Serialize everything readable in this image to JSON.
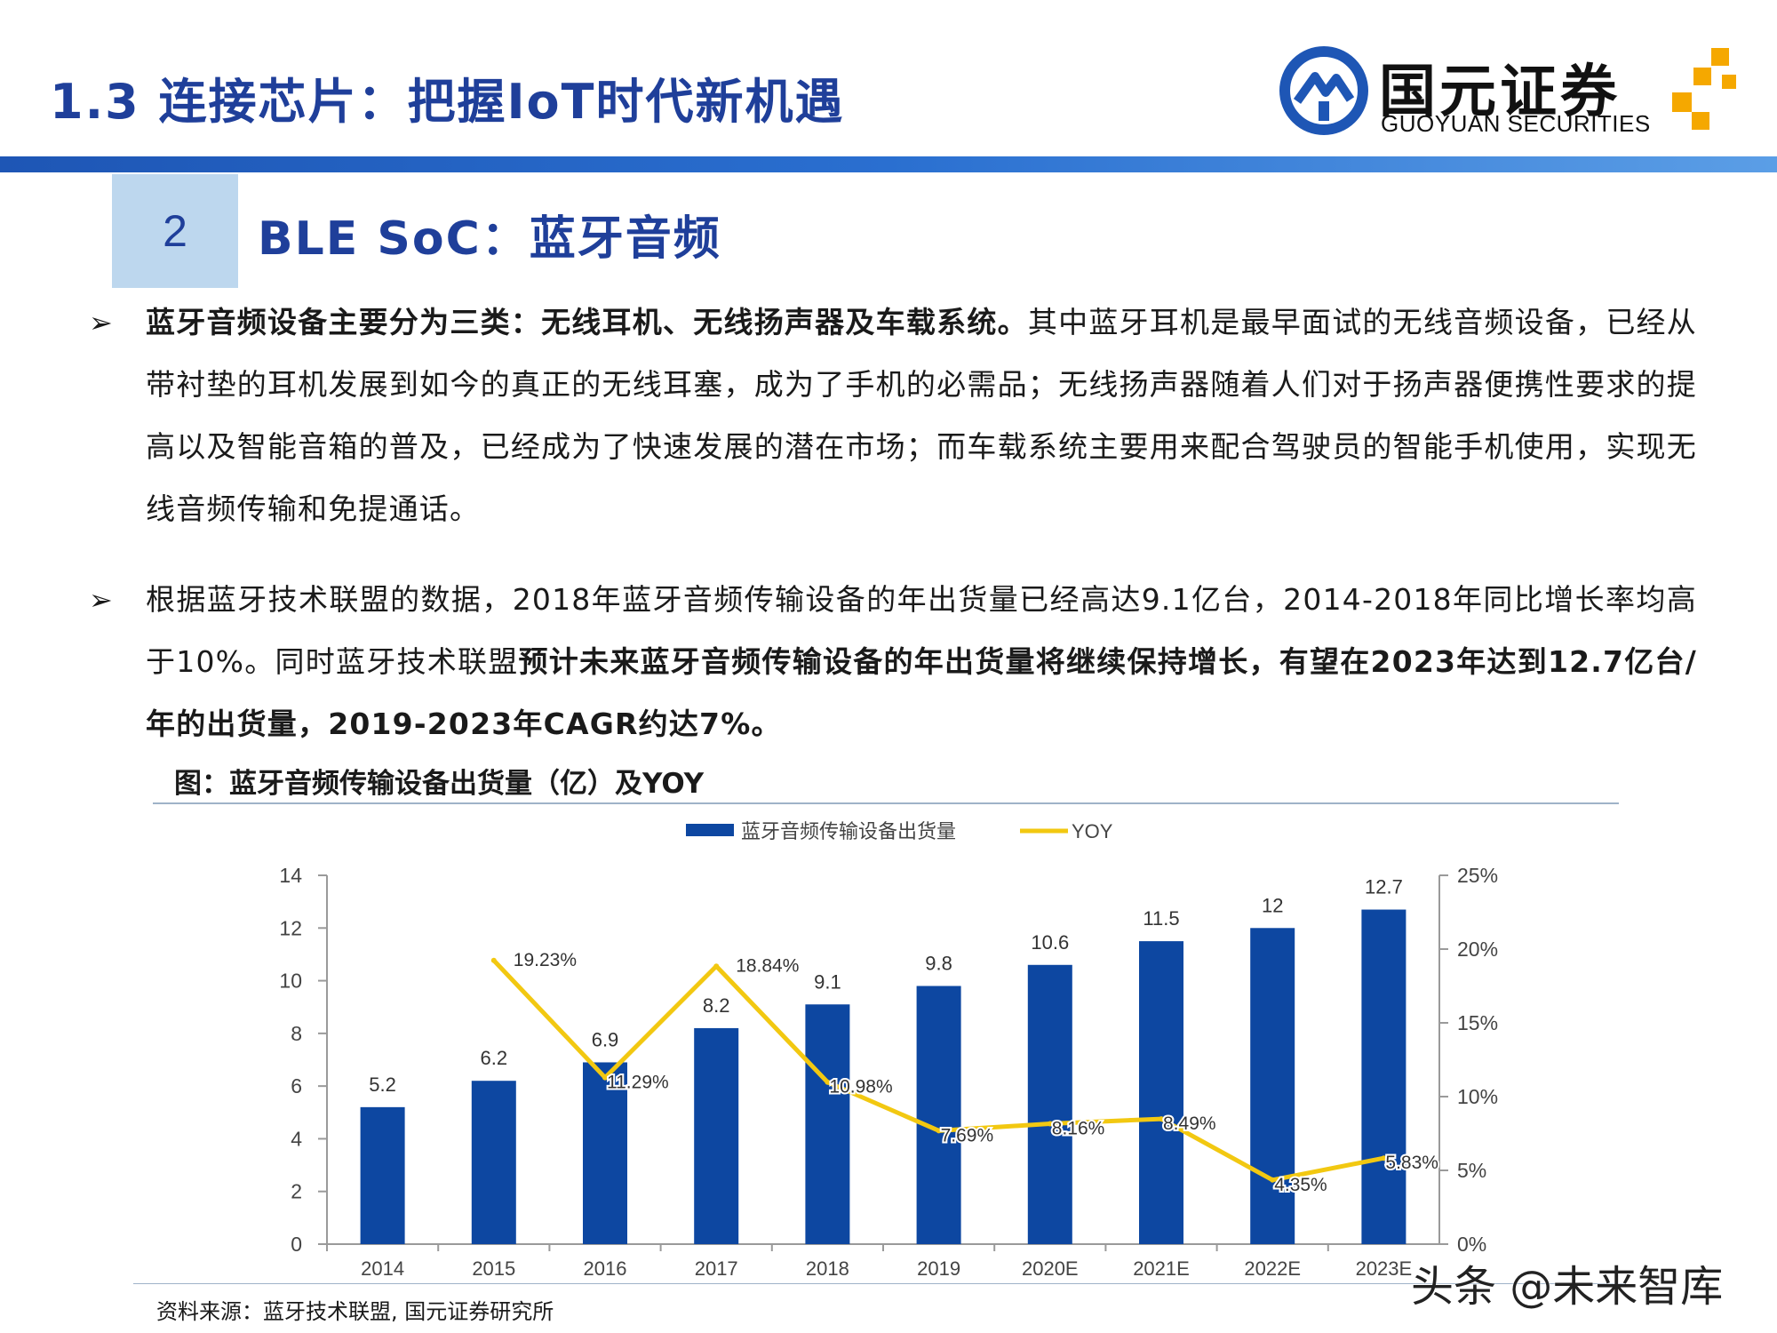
{
  "header": {
    "title": "1.3 连接芯片：把握IoT时代新机遇",
    "logo_cn": "国元证券",
    "logo_en": "GUOYUAN SECURITIES"
  },
  "section": {
    "number": "2",
    "title": "BLE SoC：蓝牙音频"
  },
  "bullet_glyph": "➢",
  "paragraph1": {
    "bold": "蓝牙音频设备主要分为三类：无线耳机、无线扬声器及车载系统。",
    "normal": "其中蓝牙耳机是最早面试的无线音频设备，已经从带衬垫的耳机发展到如今的真正的无线耳塞，成为了手机的必需品；无线扬声器随着人们对于扬声器便携性要求的提高以及智能音箱的普及，已经成为了快速发展的潜在市场；而车载系统主要用来配合驾驶员的智能手机使用，实现无线音频传输和免提通话。"
  },
  "paragraph2": {
    "normal": "根据蓝牙技术联盟的数据，2018年蓝牙音频传输设备的年出货量已经高达9.1亿台，2014-2018年同比增长率均高于10%。同时蓝牙技术联盟",
    "bold": "预计未来蓝牙音频传输设备的年出货量将继续保持增长，有望在2023年达到12.7亿台/年的出货量，2019-2023年CAGR约达7%。"
  },
  "figure": {
    "caption": "图：蓝牙音频传输设备出货量（亿）及YOY"
  },
  "chart_data": {
    "type": "bar",
    "categories": [
      "2014",
      "2015",
      "2016",
      "2017",
      "2018",
      "2019",
      "2020E",
      "2021E",
      "2022E",
      "2023E"
    ],
    "series": [
      {
        "name": "蓝牙音频传输设备出货量",
        "type": "bar",
        "axis": "left",
        "color": "#0d47a1",
        "values": [
          5.2,
          6.2,
          6.9,
          8.2,
          9.1,
          9.8,
          10.6,
          11.5,
          12,
          12.7
        ],
        "labels": [
          "5.2",
          "6.2",
          "6.9",
          "8.2",
          "9.1",
          "9.8",
          "10.6",
          "11.5",
          "12",
          "12.7"
        ]
      },
      {
        "name": "YOY",
        "type": "line",
        "axis": "right",
        "color": "#f2c811",
        "values": [
          null,
          19.23,
          11.29,
          18.84,
          10.98,
          7.69,
          8.16,
          8.49,
          4.35,
          5.83
        ],
        "labels": [
          "",
          "19.23%",
          "11.29%",
          "18.84%",
          "10.98%",
          "7.69%",
          "8.16%",
          "8.49%",
          "4.35%",
          "5.83%"
        ]
      }
    ],
    "y_left": {
      "min": 0,
      "max": 14,
      "ticks": [
        "0",
        "2",
        "4",
        "6",
        "8",
        "10",
        "12",
        "14"
      ]
    },
    "y_right": {
      "min": 0,
      "max": 25,
      "ticks": [
        "0%",
        "5%",
        "10%",
        "15%",
        "20%",
        "25%"
      ]
    },
    "legend_position": "top-center",
    "grid": false
  },
  "source": "资料来源：蓝牙技术联盟, 国元证券研究所",
  "watermark": "头条 @未来智库"
}
